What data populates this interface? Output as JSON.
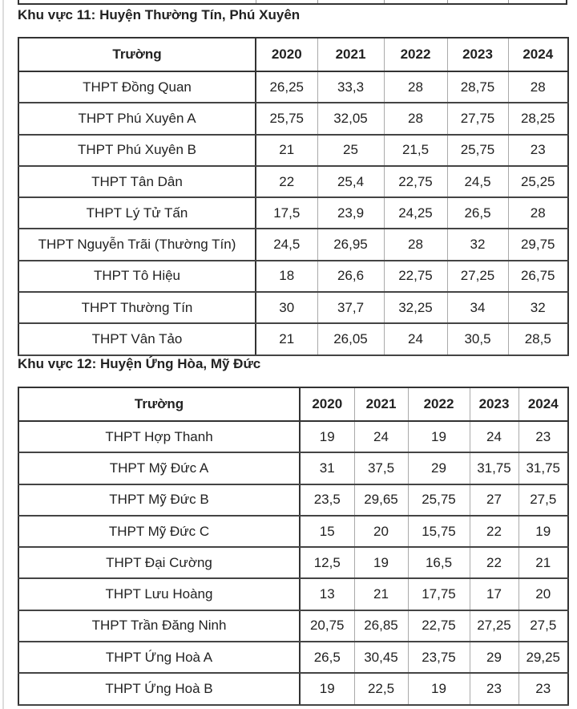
{
  "sections": [
    {
      "title": "Khu vực 11: Huyện Thường Tín, Phú Xuyên",
      "headers": [
        "Trường",
        "2020",
        "2021",
        "2022",
        "2023",
        "2024"
      ],
      "rows": [
        [
          "THPT Đồng Quan",
          "26,25",
          "33,3",
          "28",
          "28,75",
          "28"
        ],
        [
          "THPT Phú Xuyên A",
          "25,75",
          "32,05",
          "28",
          "27,75",
          "28,25"
        ],
        [
          "THPT Phú Xuyên B",
          "21",
          "25",
          "21,5",
          "25,75",
          "23"
        ],
        [
          "THPT Tân Dân",
          "22",
          "25,4",
          "22,75",
          "24,5",
          "25,25"
        ],
        [
          "THPT Lý Tử Tấn",
          "17,5",
          "23,9",
          "24,25",
          "26,5",
          "28"
        ],
        [
          "THPT Nguyễn Trãi (Thường Tín)",
          "24,5",
          "26,95",
          "28",
          "32",
          "29,75"
        ],
        [
          "THPT Tô Hiệu",
          "18",
          "26,6",
          "22,75",
          "27,25",
          "26,75"
        ],
        [
          "THPT Thường Tín",
          "30",
          "37,7",
          "32,25",
          "34",
          "32"
        ],
        [
          "THPT Vân Tảo",
          "21",
          "26,05",
          "24",
          "30,5",
          "28,5"
        ]
      ]
    },
    {
      "title": "Khu vực 12: Huyện Ứng Hòa, Mỹ Đức",
      "headers": [
        "Trường",
        "2020",
        "2021",
        "2022",
        "2023",
        "2024"
      ],
      "rows": [
        [
          "THPT Hợp Thanh",
          "19",
          "24",
          "19",
          "24",
          "23"
        ],
        [
          "THPT Mỹ Đức A",
          "31",
          "37,5",
          "29",
          "31,75",
          "31,75"
        ],
        [
          "THPT Mỹ Đức B",
          "23,5",
          "29,65",
          "25,75",
          "27",
          "27,5"
        ],
        [
          "THPT Mỹ Đức C",
          "15",
          "20",
          "15,75",
          "22",
          "19"
        ],
        [
          "THPT Đại Cường",
          "12,5",
          "19",
          "16,5",
          "22",
          "21"
        ],
        [
          "THPT Lưu Hoàng",
          "13",
          "21",
          "17,75",
          "17",
          "20"
        ],
        [
          "THPT Trần Đăng Ninh",
          "20,75",
          "26,85",
          "22,75",
          "27,25",
          "27,5"
        ],
        [
          "THPT Ứng Hoà A",
          "26,5",
          "30,45",
          "23,75",
          "29",
          "29,25"
        ],
        [
          "THPT Ứng Hoà B",
          "19",
          "22,5",
          "19",
          "23",
          "23"
        ]
      ]
    }
  ]
}
